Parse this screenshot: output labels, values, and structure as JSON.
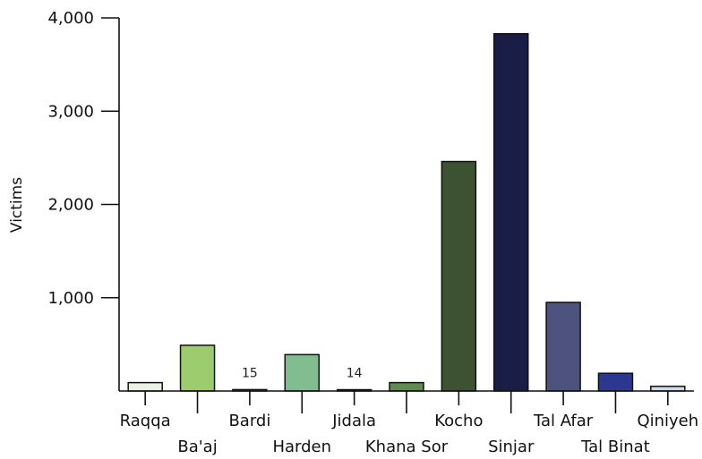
{
  "chart_data": {
    "type": "bar",
    "title": "",
    "xlabel": "",
    "ylabel": "Victims",
    "ylim": [
      0,
      4000
    ],
    "yticks": [
      1000,
      2000,
      3000,
      4000
    ],
    "ytick_labels": [
      "1,000",
      "2,000",
      "3,000",
      "4,000"
    ],
    "grid": false,
    "categories": [
      "Raqqa",
      "Ba'aj",
      "Bardi",
      "Harden",
      "Jidala",
      "Khana Sor",
      "Kocho",
      "Sinjar",
      "Tal Afar",
      "Tal Binat",
      "Qiniyeh"
    ],
    "values": [
      90,
      490,
      15,
      390,
      14,
      90,
      2460,
      3830,
      950,
      190,
      50
    ],
    "data_labels": [
      "",
      "",
      "15",
      "",
      "14",
      "",
      "",
      "",
      "",
      "",
      ""
    ],
    "colors": [
      "#e8f3e4",
      "#9ccc6d",
      "#ffffff",
      "#81bd8f",
      "#ffffff",
      "#5f8c4f",
      "#3d5233",
      "#1a1d45",
      "#4d527e",
      "#2c3890",
      "#c9dbe9"
    ]
  }
}
